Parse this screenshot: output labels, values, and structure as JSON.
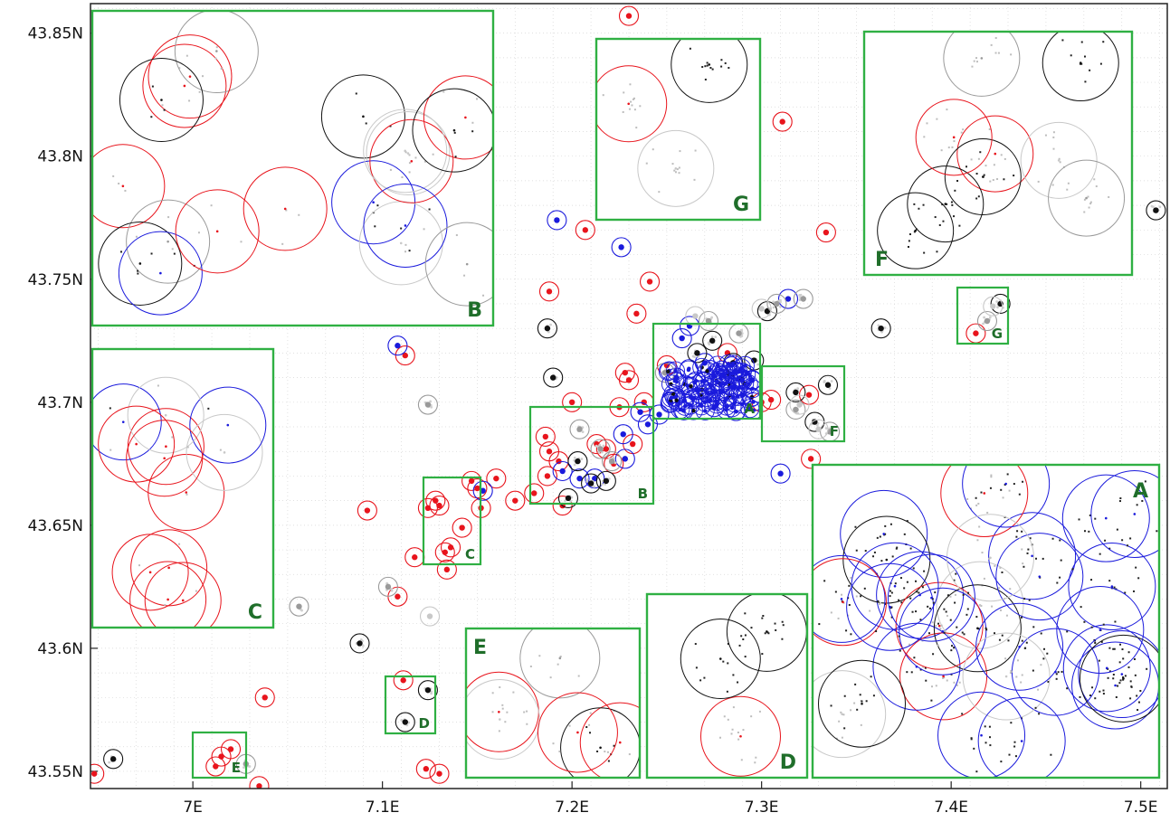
{
  "chart_data": {
    "type": "scatter",
    "title": "",
    "xlabel": "",
    "ylabel": "",
    "xlim": [
      6.946,
      7.514
    ],
    "ylim": [
      43.543,
      43.862
    ],
    "grid": true,
    "x_ticks": [
      {
        "value": 7.0,
        "label": "7E"
      },
      {
        "value": 7.1,
        "label": "7.1E"
      },
      {
        "value": 7.2,
        "label": "7.2E"
      },
      {
        "value": 7.3,
        "label": "7.3E"
      },
      {
        "value": 7.4,
        "label": "7.4E"
      },
      {
        "value": 7.5,
        "label": "7.5E"
      }
    ],
    "y_ticks": [
      {
        "value": 43.55,
        "label": "43.55N"
      },
      {
        "value": 43.6,
        "label": "43.6N"
      },
      {
        "value": 43.65,
        "label": "43.65N"
      },
      {
        "value": 43.7,
        "label": "43.7N"
      },
      {
        "value": 43.75,
        "label": "43.75N"
      },
      {
        "value": 43.8,
        "label": "43.8N"
      },
      {
        "value": 43.85,
        "label": "43.85N"
      }
    ],
    "colors": {
      "red": "#e8141c",
      "blue": "#1a1adc",
      "black": "#111111",
      "gray": "#9a9a9a",
      "lightgray": "#c8c8c8",
      "box": "#2fb043",
      "boxlabel": "#1f6e2a"
    },
    "series": [
      {
        "color": "red",
        "points": [
          [
            6.948,
            43.549
          ],
          [
            7.015,
            43.556
          ],
          [
            7.02,
            43.559
          ],
          [
            7.012,
            43.552
          ],
          [
            7.038,
            43.58
          ],
          [
            7.035,
            43.544
          ],
          [
            7.092,
            43.656
          ],
          [
            7.108,
            43.621
          ],
          [
            7.112,
            43.719
          ],
          [
            7.117,
            43.637
          ],
          [
            7.123,
            43.551
          ],
          [
            7.13,
            43.549
          ],
          [
            7.111,
            43.587
          ],
          [
            7.124,
            43.657
          ],
          [
            7.128,
            43.66
          ],
          [
            7.13,
            43.658
          ],
          [
            7.133,
            43.639
          ],
          [
            7.136,
            43.641
          ],
          [
            7.134,
            43.632
          ],
          [
            7.142,
            43.649
          ],
          [
            7.147,
            43.668
          ],
          [
            7.15,
            43.665
          ],
          [
            7.152,
            43.657
          ],
          [
            7.16,
            43.669
          ],
          [
            7.17,
            43.66
          ],
          [
            7.18,
            43.663
          ],
          [
            7.186,
            43.686
          ],
          [
            7.188,
            43.68
          ],
          [
            7.187,
            43.67
          ],
          [
            7.188,
            43.745
          ],
          [
            7.193,
            43.676
          ],
          [
            7.195,
            43.658
          ],
          [
            7.2,
            43.7
          ],
          [
            7.207,
            43.77
          ],
          [
            7.213,
            43.683
          ],
          [
            7.218,
            43.681
          ],
          [
            7.222,
            43.675
          ],
          [
            7.225,
            43.698
          ],
          [
            7.228,
            43.712
          ],
          [
            7.23,
            43.709
          ],
          [
            7.23,
            43.857
          ],
          [
            7.232,
            43.683
          ],
          [
            7.238,
            43.7
          ],
          [
            7.234,
            43.736
          ],
          [
            7.241,
            43.749
          ],
          [
            7.25,
            43.715
          ],
          [
            7.282,
            43.72
          ],
          [
            7.3,
            43.7
          ],
          [
            7.305,
            43.701
          ],
          [
            7.311,
            43.814
          ],
          [
            7.325,
            43.703
          ],
          [
            7.326,
            43.677
          ],
          [
            7.334,
            43.769
          ],
          [
            7.413,
            43.728
          ]
        ]
      },
      {
        "color": "blue",
        "points": [
          [
            7.108,
            43.723
          ],
          [
            7.153,
            43.664
          ],
          [
            7.192,
            43.774
          ],
          [
            7.195,
            43.672
          ],
          [
            7.204,
            43.669
          ],
          [
            7.212,
            43.669
          ],
          [
            7.226,
            43.763
          ],
          [
            7.227,
            43.687
          ],
          [
            7.228,
            43.677
          ],
          [
            7.236,
            43.696
          ],
          [
            7.24,
            43.691
          ],
          [
            7.246,
            43.695
          ],
          [
            7.252,
            43.7
          ],
          [
            7.255,
            43.71
          ],
          [
            7.258,
            43.726
          ],
          [
            7.262,
            43.731
          ],
          [
            7.266,
            43.705
          ],
          [
            7.27,
            43.716
          ],
          [
            7.275,
            43.698
          ],
          [
            7.28,
            43.711
          ],
          [
            7.285,
            43.706
          ],
          [
            7.29,
            43.703
          ],
          [
            7.295,
            43.709
          ],
          [
            7.31,
            43.671
          ],
          [
            7.314,
            43.742
          ]
        ]
      },
      {
        "color": "black",
        "points": [
          [
            6.958,
            43.555
          ],
          [
            7.088,
            43.602
          ],
          [
            7.124,
            43.583
          ],
          [
            7.112,
            43.57
          ],
          [
            7.187,
            43.73
          ],
          [
            7.19,
            43.71
          ],
          [
            7.198,
            43.661
          ],
          [
            7.203,
            43.676
          ],
          [
            7.21,
            43.667
          ],
          [
            7.218,
            43.668
          ],
          [
            7.266,
            43.72
          ],
          [
            7.274,
            43.725
          ],
          [
            7.285,
            43.716
          ],
          [
            7.296,
            43.717
          ],
          [
            7.303,
            43.737
          ],
          [
            7.318,
            43.704
          ],
          [
            7.328,
            43.692
          ],
          [
            7.335,
            43.707
          ],
          [
            7.363,
            43.73
          ],
          [
            7.426,
            43.74
          ],
          [
            7.508,
            43.778
          ]
        ]
      },
      {
        "color": "gray",
        "points": [
          [
            7.028,
            43.553
          ],
          [
            7.056,
            43.617
          ],
          [
            7.103,
            43.625
          ],
          [
            7.124,
            43.699
          ],
          [
            7.204,
            43.689
          ],
          [
            7.215,
            43.681
          ],
          [
            7.221,
            43.676
          ],
          [
            7.249,
            43.712
          ],
          [
            7.272,
            43.733
          ],
          [
            7.288,
            43.728
          ],
          [
            7.308,
            43.74
          ],
          [
            7.322,
            43.742
          ],
          [
            7.318,
            43.697
          ],
          [
            7.336,
            43.688
          ],
          [
            7.419,
            43.733
          ]
        ]
      },
      {
        "color": "lightgray",
        "points": [
          [
            7.125,
            43.613
          ],
          [
            7.265,
            43.735
          ],
          [
            7.3,
            43.738
          ],
          [
            7.32,
            43.699
          ],
          [
            7.33,
            43.689
          ],
          [
            7.422,
            43.739
          ]
        ]
      }
    ],
    "insets": [
      {
        "label": "A"
      },
      {
        "label": "B"
      },
      {
        "label": "C"
      },
      {
        "label": "D"
      },
      {
        "label": "E"
      },
      {
        "label": "F"
      },
      {
        "label": "G"
      }
    ],
    "source_boxes": [
      {
        "label": "A"
      },
      {
        "label": "B"
      },
      {
        "label": "C"
      },
      {
        "label": "D"
      },
      {
        "label": "E"
      },
      {
        "label": "F"
      },
      {
        "label": "G"
      }
    ]
  }
}
